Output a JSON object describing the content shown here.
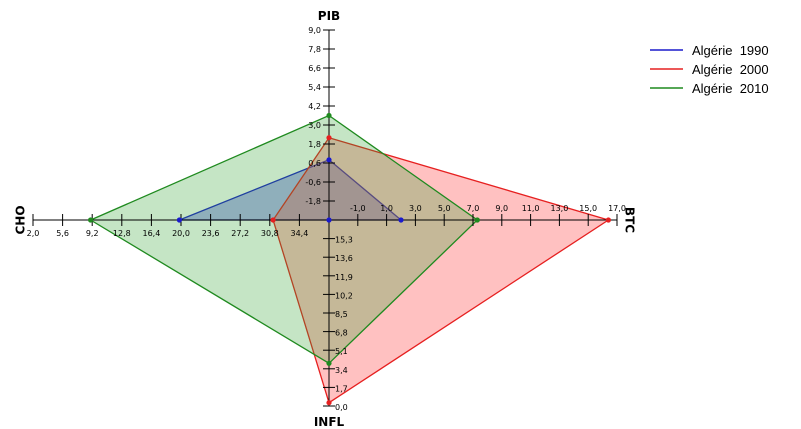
{
  "chart_data": {
    "type": "radar",
    "axes": [
      {
        "name": "PIB",
        "direction": "up",
        "range": [
          -3.0,
          9.0
        ],
        "ticks": [
          "-1,8",
          "-0,6",
          "0,6",
          "1,8",
          "3,0",
          "4,2",
          "5,4",
          "6,6",
          "7,8",
          "9,0"
        ],
        "tick_values": [
          -1.8,
          -0.6,
          0.6,
          1.8,
          3.0,
          4.2,
          5.4,
          6.6,
          7.8,
          9.0
        ]
      },
      {
        "name": "BTC",
        "direction": "right",
        "range": [
          -3.0,
          17.0
        ],
        "ticks": [
          "-1,0",
          "1,0",
          "3,0",
          "5,0",
          "7,0",
          "9,0",
          "11,0",
          "13,0",
          "15,0",
          "17,0"
        ],
        "tick_values": [
          -1.0,
          1.0,
          3.0,
          5.0,
          7.0,
          9.0,
          11.0,
          13.0,
          15.0,
          17.0
        ]
      },
      {
        "name": "INFL",
        "direction": "down",
        "range": [
          17.0,
          0.0
        ],
        "ticks": [
          "15,3",
          "13,6",
          "11,9",
          "10,2",
          "8,5",
          "6,8",
          "5,1",
          "3,4",
          "1,7",
          "0,0"
        ],
        "tick_values": [
          15.3,
          13.6,
          11.9,
          10.2,
          8.5,
          6.8,
          5.1,
          3.4,
          1.7,
          0.0
        ]
      },
      {
        "name": "CHO",
        "direction": "left",
        "range": [
          38.0,
          2.0
        ],
        "ticks": [
          "34,4",
          "30,8",
          "27,2",
          "23,6",
          "20,0",
          "16,4",
          "12,8",
          "9,2",
          "5,6",
          "2,0"
        ],
        "tick_values": [
          34.4,
          30.8,
          27.2,
          23.6,
          20.0,
          16.4,
          12.8,
          9.2,
          5.6,
          2.0
        ]
      }
    ],
    "series": [
      {
        "name": "Algérie  1990",
        "color": "#1a1acc",
        "fill": "#2b2bd6",
        "fill_opacity": 0.35,
        "values": {
          "PIB": 0.8,
          "BTC": 2.0,
          "INFL": 17.0,
          "CHO": 19.8
        }
      },
      {
        "name": "Algérie  2000",
        "color": "#e62020",
        "fill": "#ff4d4d",
        "fill_opacity": 0.35,
        "values": {
          "PIB": 2.2,
          "BTC": 16.4,
          "INFL": 0.3,
          "CHO": 31.2
        }
      },
      {
        "name": "Algérie  2010",
        "color": "#1f8a1f",
        "fill": "#2ea02e",
        "fill_opacity": 0.28,
        "values": {
          "PIB": 3.6,
          "BTC": 7.3,
          "INFL": 3.9,
          "CHO": 9.0
        }
      }
    ],
    "legend_position": "top-right",
    "grid": false
  }
}
